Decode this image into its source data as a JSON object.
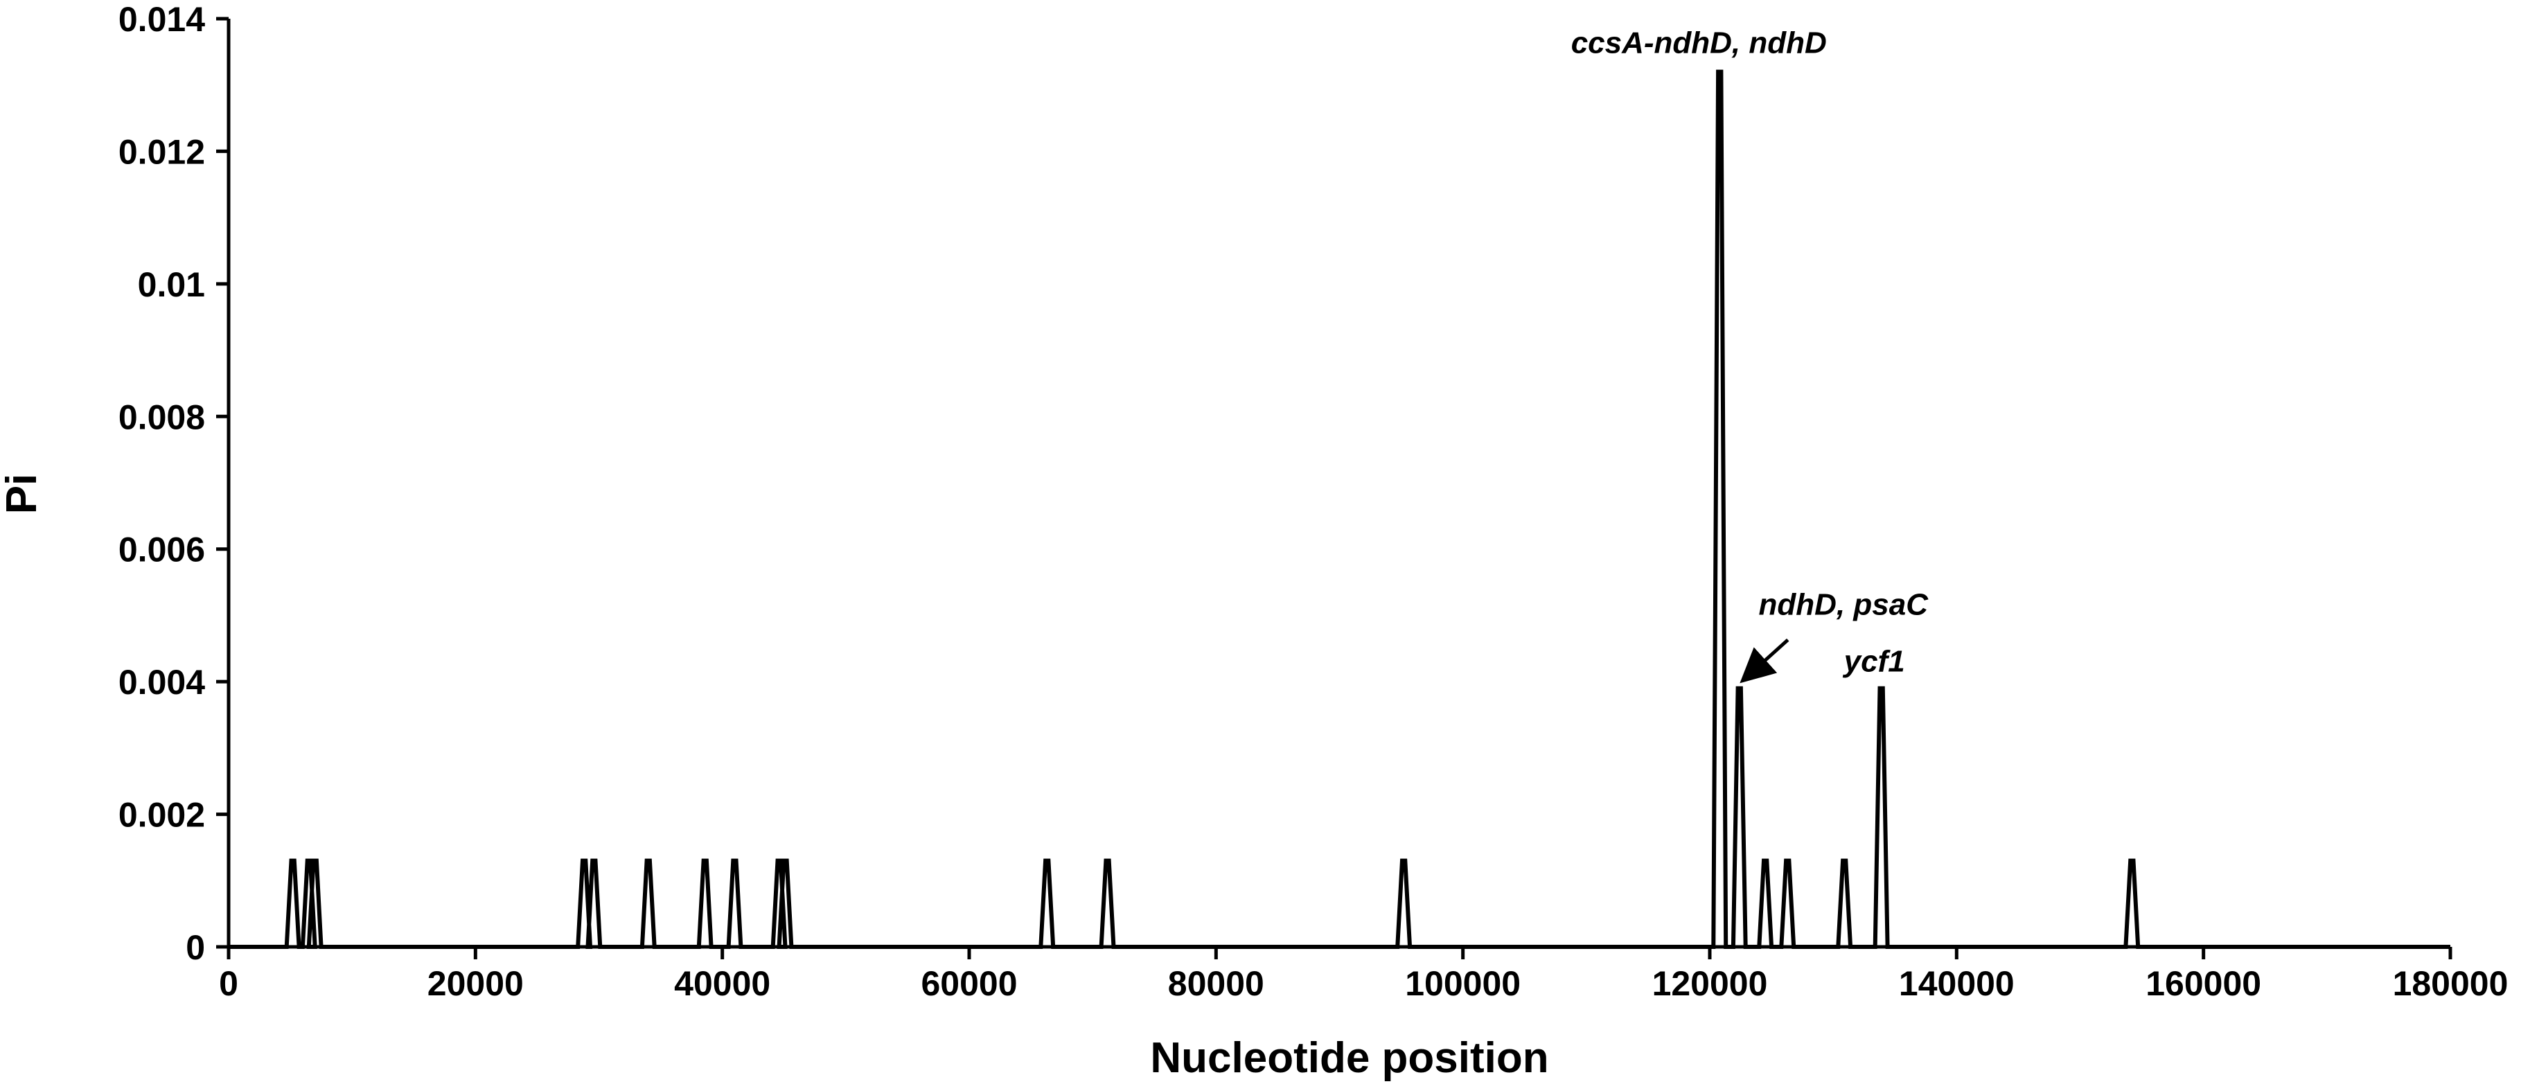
{
  "chart_data": {
    "type": "line",
    "title": "",
    "xlabel": "Nucleotide position",
    "ylabel": "Pi",
    "xlim": [
      0,
      180000
    ],
    "ylim": [
      0,
      0.014
    ],
    "grid": false,
    "legend": "none",
    "x_ticks": [
      0,
      20000,
      40000,
      60000,
      80000,
      100000,
      120000,
      140000,
      160000,
      180000
    ],
    "x_tick_labels": [
      "0",
      "20000",
      "40000",
      "60000",
      "80000",
      "100000",
      "120000",
      "140000",
      "160000",
      "180000"
    ],
    "y_ticks": [
      0,
      0.002,
      0.004,
      0.006,
      0.008,
      0.01,
      0.012,
      0.014
    ],
    "y_tick_labels": [
      "0",
      "0.002",
      "0.004",
      "0.006",
      "0.008",
      "0.01",
      "0.012",
      "0.014"
    ],
    "series": [
      {
        "color": "#000000",
        "peaks": [
          {
            "x": 5200,
            "y": 0.0013
          },
          {
            "x": 6500,
            "y": 0.0013
          },
          {
            "x": 7000,
            "y": 0.0013
          },
          {
            "x": 28800,
            "y": 0.0013
          },
          {
            "x": 29600,
            "y": 0.0013
          },
          {
            "x": 34000,
            "y": 0.0013
          },
          {
            "x": 38600,
            "y": 0.0013
          },
          {
            "x": 41000,
            "y": 0.0013
          },
          {
            "x": 44600,
            "y": 0.0013
          },
          {
            "x": 45100,
            "y": 0.0013
          },
          {
            "x": 66300,
            "y": 0.0013
          },
          {
            "x": 71200,
            "y": 0.0013
          },
          {
            "x": 95200,
            "y": 0.0013
          },
          {
            "x": 120800,
            "y": 0.0132
          },
          {
            "x": 122400,
            "y": 0.0039
          },
          {
            "x": 124500,
            "y": 0.0013
          },
          {
            "x": 126300,
            "y": 0.0013
          },
          {
            "x": 130900,
            "y": 0.0013
          },
          {
            "x": 133900,
            "y": 0.0039
          },
          {
            "x": 154200,
            "y": 0.0013
          }
        ]
      }
    ],
    "annotations": [
      {
        "text": "ccsA-ndhD, ndhD",
        "x": 120800,
        "y": 0.0132
      },
      {
        "text": "ndhD, psaC",
        "x": 122400,
        "y": 0.0039
      },
      {
        "text": "ycf1",
        "x": 133900,
        "y": 0.0039
      }
    ]
  }
}
